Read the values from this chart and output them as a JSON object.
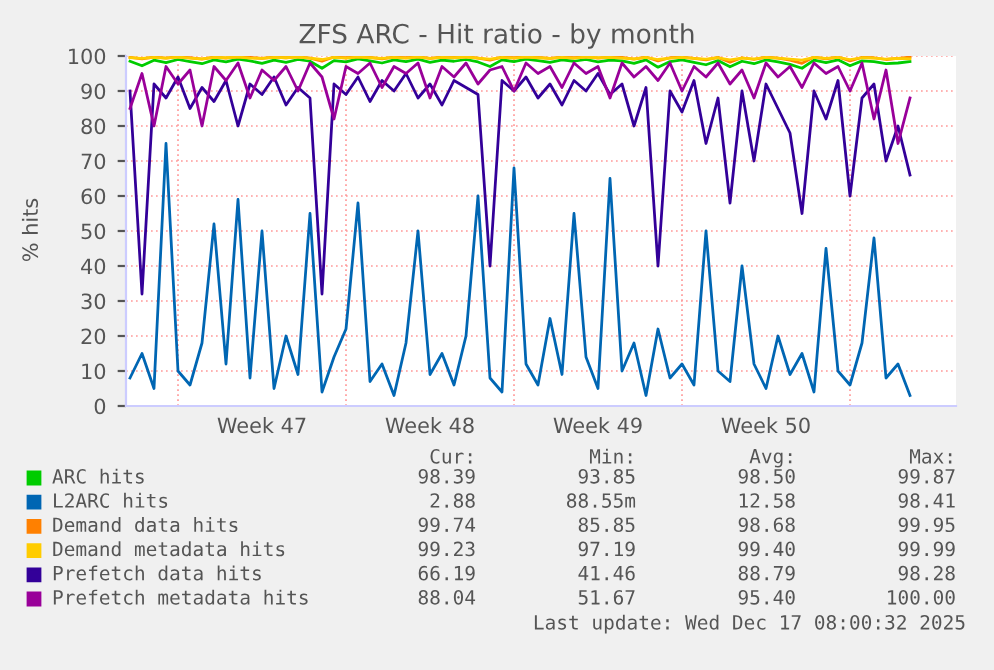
{
  "chart_data": {
    "type": "line",
    "title": "ZFS ARC - Hit ratio - by month",
    "ylabel": "% hits",
    "x": [
      "2025-11-15T00:00",
      "2025-11-15T12:00",
      "2025-11-16T00:00",
      "2025-11-16T12:00",
      "2025-11-17T00:00",
      "2025-11-17T12:00",
      "2025-11-18T00:00",
      "2025-11-18T12:00",
      "2025-11-19T00:00",
      "2025-11-19T12:00",
      "2025-11-20T00:00",
      "2025-11-20T12:00",
      "2025-11-21T00:00",
      "2025-11-21T12:00",
      "2025-11-22T00:00",
      "2025-11-22T12:00",
      "2025-11-23T00:00",
      "2025-11-23T12:00",
      "2025-11-24T00:00",
      "2025-11-24T12:00",
      "2025-11-25T00:00",
      "2025-11-25T12:00",
      "2025-11-26T00:00",
      "2025-11-26T12:00",
      "2025-11-27T00:00",
      "2025-11-27T12:00",
      "2025-11-28T00:00",
      "2025-11-28T12:00",
      "2025-11-29T00:00",
      "2025-11-29T12:00",
      "2025-11-30T00:00",
      "2025-11-30T12:00",
      "2025-12-01T00:00",
      "2025-12-01T12:00",
      "2025-12-02T00:00",
      "2025-12-02T12:00",
      "2025-12-03T00:00",
      "2025-12-03T12:00",
      "2025-12-04T00:00",
      "2025-12-04T12:00",
      "2025-12-05T00:00",
      "2025-12-05T12:00",
      "2025-12-06T00:00",
      "2025-12-06T12:00",
      "2025-12-07T00:00",
      "2025-12-07T12:00",
      "2025-12-08T00:00",
      "2025-12-08T12:00",
      "2025-12-09T00:00",
      "2025-12-09T12:00",
      "2025-12-10T00:00",
      "2025-12-10T12:00",
      "2025-12-11T00:00",
      "2025-12-11T12:00",
      "2025-12-12T00:00",
      "2025-12-12T12:00",
      "2025-12-13T00:00",
      "2025-12-13T12:00",
      "2025-12-14T00:00",
      "2025-12-14T12:00",
      "2025-12-15T00:00",
      "2025-12-15T12:00",
      "2025-12-16T00:00",
      "2025-12-16T12:00",
      "2025-12-17T00:00",
      "2025-12-17T12:00"
    ],
    "series": [
      {
        "name": "ARC hits",
        "color": "#00cc00",
        "values": [
          98.5,
          97.2,
          98.8,
          98.1,
          99.0,
          98.4,
          97.8,
          98.9,
          98.3,
          99.1,
          98.6,
          97.9,
          98.8,
          98.2,
          99.0,
          98.5,
          96.5,
          98.7,
          98.3,
          99.2,
          98.6,
          98.0,
          98.9,
          98.4,
          99.1,
          98.2,
          98.8,
          98.5,
          99.0,
          98.3,
          97.0,
          98.9,
          98.4,
          99.1,
          98.7,
          98.2,
          98.9,
          98.5,
          99.0,
          98.3,
          98.8,
          98.6,
          97.9,
          98.9,
          96.8,
          98.4,
          98.9,
          98.2,
          97.5,
          98.7,
          96.9,
          98.5,
          97.8,
          98.9,
          98.3,
          97.6,
          96.5,
          98.8,
          98.1,
          98.9,
          97.2,
          98.6,
          98.4,
          97.8,
          98.0,
          98.4
        ]
      },
      {
        "name": "L2ARC hits",
        "color": "#0066b3",
        "values": [
          8,
          15,
          5,
          75,
          10,
          6,
          18,
          52,
          12,
          59,
          8,
          50,
          5,
          20,
          9,
          55,
          4,
          14,
          22,
          58,
          7,
          12,
          3,
          18,
          50,
          9,
          15,
          6,
          20,
          60,
          8,
          4,
          68,
          12,
          6,
          25,
          9,
          55,
          14,
          5,
          65,
          10,
          18,
          3,
          22,
          8,
          12,
          6,
          50,
          10,
          7,
          40,
          12,
          5,
          20,
          9,
          15,
          4,
          45,
          10,
          6,
          18,
          48,
          8,
          12,
          3
        ]
      },
      {
        "name": "Demand data hits",
        "color": "#ff8000",
        "values": [
          99.6,
          99.2,
          99.7,
          99.4,
          99.8,
          99.5,
          99.1,
          99.7,
          99.4,
          99.8,
          99.6,
          99.3,
          99.7,
          99.5,
          99.8,
          99.4,
          98.5,
          99.7,
          99.5,
          99.8,
          99.6,
          99.2,
          99.7,
          99.5,
          99.8,
          99.3,
          99.7,
          99.6,
          99.8,
          99.4,
          98.8,
          99.7,
          99.5,
          99.8,
          99.6,
          99.3,
          99.7,
          99.5,
          99.8,
          99.4,
          99.7,
          99.6,
          99.1,
          99.7,
          98.6,
          99.5,
          99.7,
          99.3,
          98.9,
          99.6,
          98.2,
          99.5,
          99.0,
          99.7,
          99.4,
          98.8,
          97.9,
          99.7,
          99.2,
          99.7,
          98.6,
          99.6,
          99.5,
          99.0,
          99.3,
          99.7
        ]
      },
      {
        "name": "Demand metadata hits",
        "color": "#ffcc00",
        "values": [
          99.5,
          99.3,
          99.6,
          99.4,
          99.7,
          99.4,
          99.2,
          99.6,
          99.5,
          99.7,
          99.4,
          99.3,
          99.6,
          99.5,
          99.7,
          99.4,
          99.0,
          99.6,
          99.4,
          99.7,
          99.5,
          99.3,
          99.6,
          99.4,
          99.7,
          99.3,
          99.6,
          99.5,
          99.7,
          99.4,
          99.1,
          99.6,
          99.4,
          99.7,
          99.5,
          99.3,
          99.6,
          99.4,
          99.7,
          99.5,
          99.6,
          99.4,
          99.2,
          99.6,
          99.0,
          99.4,
          99.6,
          99.3,
          99.1,
          99.5,
          98.9,
          99.4,
          99.2,
          99.6,
          99.4,
          99.1,
          98.8,
          99.6,
          99.3,
          99.6,
          99.0,
          99.5,
          99.4,
          99.1,
          99.3,
          99.2
        ]
      },
      {
        "name": "Prefetch data hits",
        "color": "#330099",
        "values": [
          90,
          32,
          92,
          88,
          94,
          85,
          91,
          87,
          93,
          80,
          92,
          89,
          94,
          86,
          91,
          88,
          32,
          92,
          89,
          94,
          87,
          93,
          90,
          95,
          88,
          92,
          86,
          93,
          91,
          89,
          40,
          93,
          90,
          94,
          88,
          92,
          86,
          93,
          90,
          95,
          89,
          92,
          80,
          91,
          40,
          90,
          84,
          93,
          75,
          88,
          58,
          90,
          70,
          92,
          85,
          78,
          55,
          90,
          82,
          93,
          60,
          88,
          92,
          70,
          80,
          66
        ]
      },
      {
        "name": "Prefetch metadata hits",
        "color": "#990099",
        "values": [
          85,
          95,
          80,
          97,
          92,
          96,
          80,
          97,
          93,
          98,
          88,
          96,
          93,
          97,
          90,
          98,
          94,
          82,
          97,
          95,
          98,
          91,
          97,
          95,
          98,
          88,
          97,
          94,
          98,
          92,
          96,
          97,
          90,
          98,
          95,
          97,
          91,
          98,
          95,
          97,
          88,
          98,
          94,
          97,
          93,
          98,
          90,
          97,
          94,
          98,
          92,
          96,
          88,
          98,
          94,
          97,
          91,
          98,
          95,
          97,
          90,
          98,
          82,
          96,
          75,
          88
        ]
      }
    ],
    "xlim": [
      "2025-11-14T20:00",
      "2025-12-19T10:00"
    ],
    "xticks": [
      {
        "value": "2025-11-17T00:00",
        "label": null
      },
      {
        "value": "2025-11-20T12:00",
        "label": "Week 47"
      },
      {
        "value": "2025-11-24T00:00",
        "label": null
      },
      {
        "value": "2025-11-27T12:00",
        "label": "Week 48"
      },
      {
        "value": "2025-12-01T00:00",
        "label": null
      },
      {
        "value": "2025-12-04T12:00",
        "label": "Week 49"
      },
      {
        "value": "2025-12-08T00:00",
        "label": null
      },
      {
        "value": "2025-12-11T12:00",
        "label": "Week 50"
      },
      {
        "value": "2025-12-15T00:00",
        "label": null
      }
    ],
    "ylim": [
      0,
      100
    ],
    "yticks": [
      0,
      10,
      20,
      30,
      40,
      50,
      60,
      70,
      80,
      90,
      100
    ],
    "grid": true,
    "legend": "bottom",
    "annotations": [
      "Cur:",
      "Min:",
      "Avg:",
      "Max:",
      "98.39",
      "93.85",
      "98.50",
      "99.87",
      "2.88",
      "88.55m",
      "12.58",
      "98.41",
      "99.74",
      "85.85",
      "98.68",
      "99.95",
      "99.23",
      "97.19",
      "99.40",
      "99.99",
      "66.19",
      "41.46",
      "88.79",
      "98.28",
      "88.04",
      "51.67",
      "95.40",
      "100.00",
      "Last update: Wed Dec 17 08:00:32 2025"
    ]
  }
}
